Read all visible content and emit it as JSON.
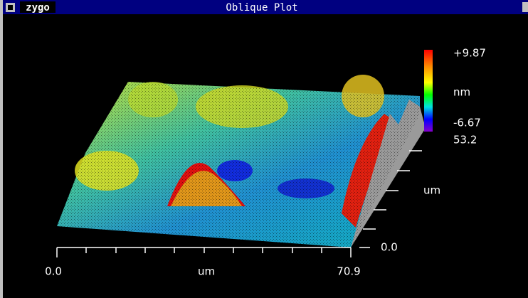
{
  "window": {
    "logo": "zygo",
    "title": "Oblique Plot"
  },
  "colorbar": {
    "max": "+9.87",
    "unit": "nm",
    "min": "-6.67"
  },
  "y_axis": {
    "max": "53.2",
    "unit": "um",
    "min": "0.0"
  },
  "x_axis": {
    "min": "0.0",
    "unit": "um",
    "max": "70.9"
  }
}
